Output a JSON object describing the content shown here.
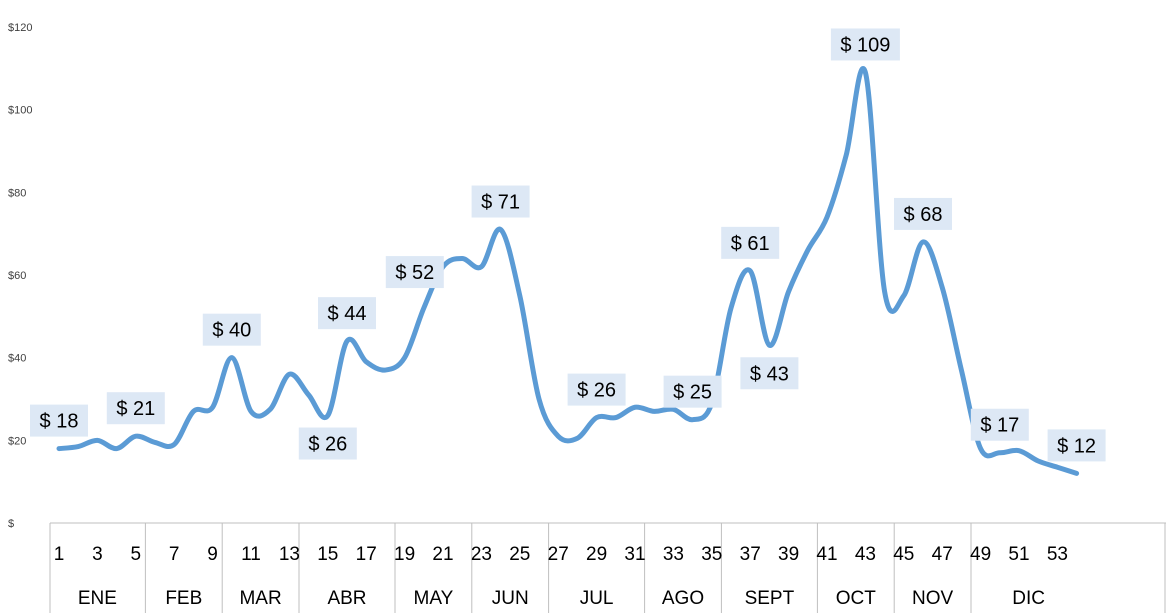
{
  "chart_data": {
    "type": "line",
    "title": "",
    "xlabel": "",
    "ylabel": "",
    "ylim": [
      0,
      120
    ],
    "yticks": [
      "$",
      "$20",
      "$40",
      "$60",
      "$80",
      "$100",
      "$120"
    ],
    "xtick_labels": [
      "1",
      "3",
      "5",
      "7",
      "9",
      "11",
      "13",
      "15",
      "17",
      "19",
      "21",
      "23",
      "25",
      "27",
      "29",
      "31",
      "33",
      "35",
      "37",
      "39",
      "41",
      "43",
      "45",
      "47",
      "49",
      "51",
      "53"
    ],
    "months": [
      {
        "label": "ENE",
        "start": 0.5,
        "end": 5.5
      },
      {
        "label": "FEB",
        "start": 5.5,
        "end": 9.5
      },
      {
        "label": "MAR",
        "start": 9.5,
        "end": 13.5
      },
      {
        "label": "ABR",
        "start": 13.5,
        "end": 18.5
      },
      {
        "label": "MAY",
        "start": 18.5,
        "end": 22.5
      },
      {
        "label": "JUN",
        "start": 22.5,
        "end": 26.5
      },
      {
        "label": "JUL",
        "start": 26.5,
        "end": 31.5
      },
      {
        "label": "AGO",
        "start": 31.5,
        "end": 35.5
      },
      {
        "label": "SEPT",
        "start": 35.5,
        "end": 40.5
      },
      {
        "label": "OCT",
        "start": 40.5,
        "end": 44.5
      },
      {
        "label": "NOV",
        "start": 44.5,
        "end": 48.5
      },
      {
        "label": "DIC",
        "start": 48.5,
        "end": 54.5
      }
    ],
    "series": [
      {
        "color": "#5b9bd5",
        "x": [
          1,
          2,
          3,
          4,
          5,
          6,
          7,
          8,
          9,
          10,
          11,
          12,
          13,
          14,
          15,
          16,
          17,
          18,
          19,
          20,
          21,
          22,
          23,
          24,
          25,
          26,
          27,
          28,
          29,
          30,
          31,
          32,
          33,
          34,
          35,
          36,
          37,
          38,
          39,
          40,
          41,
          42,
          43,
          44,
          45,
          46,
          47,
          48,
          49,
          50,
          51,
          52,
          53,
          54
        ],
        "values": [
          18,
          18.5,
          20,
          18,
          21,
          19.5,
          19,
          27,
          28,
          40,
          27,
          27.5,
          36,
          31,
          26,
          44,
          39,
          37,
          40,
          52,
          62,
          64,
          62,
          71,
          55,
          30,
          21,
          20.5,
          25.5,
          25.5,
          28,
          27,
          27.5,
          25,
          29,
          52,
          61,
          43,
          56,
          66,
          74,
          89,
          109,
          56,
          55,
          68,
          57,
          37,
          18,
          17,
          17.5,
          15,
          13.5,
          12
        ],
        "labels": [
          {
            "x": 1,
            "text": "$ 18",
            "pos": "above"
          },
          {
            "x": 5,
            "text": "$ 21",
            "pos": "above"
          },
          {
            "x": 10,
            "text": "$ 40",
            "pos": "above"
          },
          {
            "x": 15,
            "text": "$ 26",
            "pos": "below"
          },
          {
            "x": 16,
            "text": "$ 44",
            "pos": "above"
          },
          {
            "x": 20,
            "text": "$ 52",
            "pos": "above-left"
          },
          {
            "x": 24,
            "text": "$ 71",
            "pos": "above"
          },
          {
            "x": 29,
            "text": "$ 26",
            "pos": "above"
          },
          {
            "x": 34,
            "text": "$ 25",
            "pos": "above"
          },
          {
            "x": 37,
            "text": "$ 61",
            "pos": "above"
          },
          {
            "x": 38,
            "text": "$ 43",
            "pos": "below"
          },
          {
            "x": 43,
            "text": "$ 109",
            "pos": "above"
          },
          {
            "x": 46,
            "text": "$ 68",
            "pos": "above"
          },
          {
            "x": 50,
            "text": "$ 17",
            "pos": "above"
          },
          {
            "x": 54,
            "text": "$ 12",
            "pos": "above"
          }
        ]
      }
    ],
    "grid": false,
    "legend": "none"
  }
}
